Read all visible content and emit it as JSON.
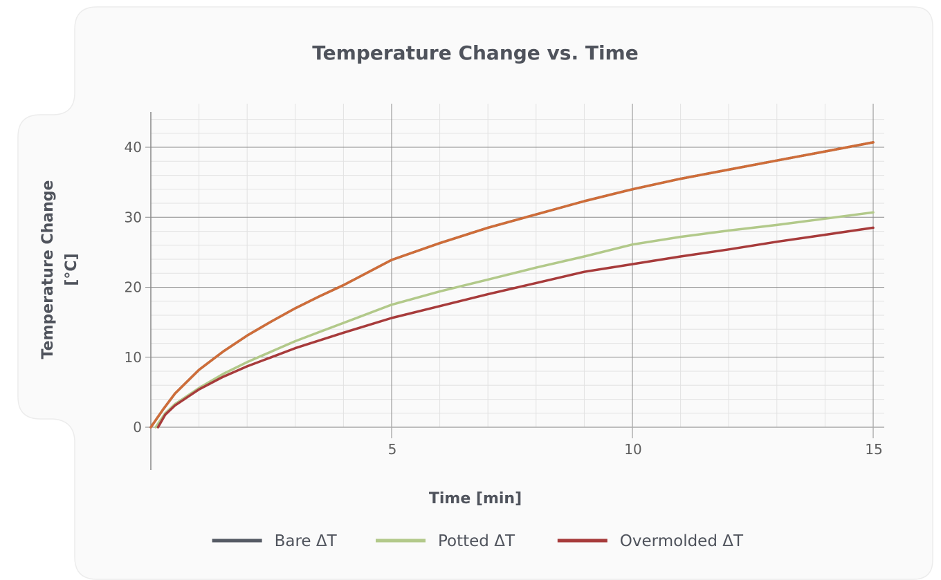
{
  "chart_data": {
    "type": "line",
    "title": "Temperature Change vs. Time",
    "xlabel": "Time [min]",
    "ylabel_lines": [
      "Temperature Change",
      "[°C]"
    ],
    "xlim": [
      0,
      15
    ],
    "ylim": [
      0,
      45
    ],
    "x_major_ticks": [
      5,
      10,
      15
    ],
    "x_minor_step": 1,
    "y_major_ticks": [
      0,
      10,
      20,
      30,
      40
    ],
    "y_minor_step": 2,
    "grid": true,
    "legend_position": "bottom",
    "series": [
      {
        "name": "Bare ΔT",
        "color": "#555a64",
        "points": [
          [
            0,
            0
          ],
          [
            0.25,
            2.5
          ],
          [
            0.5,
            4.8
          ],
          [
            1,
            8.2
          ],
          [
            1.5,
            10.8
          ],
          [
            2,
            13.1
          ],
          [
            2.5,
            15.1
          ],
          [
            3,
            17.0
          ],
          [
            3.5,
            18.7
          ],
          [
            4,
            20.3
          ],
          [
            5,
            23.9
          ],
          [
            6,
            26.3
          ],
          [
            7,
            28.5
          ],
          [
            8,
            30.4
          ],
          [
            9,
            32.3
          ],
          [
            10,
            34.0
          ],
          [
            11,
            35.5
          ],
          [
            12,
            36.8
          ],
          [
            13,
            38.1
          ],
          [
            14,
            39.4
          ],
          [
            15,
            40.7
          ]
        ]
      },
      {
        "name": "Potted ΔT",
        "color": "#b2c98a",
        "points": [
          [
            0.1,
            0
          ],
          [
            0.3,
            2.0
          ],
          [
            0.5,
            3.3
          ],
          [
            1,
            5.6
          ],
          [
            1.5,
            7.6
          ],
          [
            2,
            9.3
          ],
          [
            2.5,
            10.8
          ],
          [
            3,
            12.3
          ],
          [
            3.5,
            13.6
          ],
          [
            4,
            14.9
          ],
          [
            5,
            17.5
          ],
          [
            6,
            19.4
          ],
          [
            7,
            21.1
          ],
          [
            8,
            22.8
          ],
          [
            9,
            24.4
          ],
          [
            10,
            26.1
          ],
          [
            11,
            27.2
          ],
          [
            12,
            28.1
          ],
          [
            13,
            28.9
          ],
          [
            14,
            29.8
          ],
          [
            15,
            30.7
          ]
        ]
      },
      {
        "name": "Overmolded ΔT",
        "color": "#a73b3b",
        "points": [
          [
            0.15,
            0
          ],
          [
            0.3,
            1.8
          ],
          [
            0.5,
            3.1
          ],
          [
            1,
            5.4
          ],
          [
            1.5,
            7.2
          ],
          [
            2,
            8.7
          ],
          [
            2.5,
            10.0
          ],
          [
            3,
            11.3
          ],
          [
            3.5,
            12.4
          ],
          [
            4,
            13.5
          ],
          [
            5,
            15.6
          ],
          [
            6,
            17.3
          ],
          [
            7,
            19.0
          ],
          [
            8,
            20.6
          ],
          [
            9,
            22.2
          ],
          [
            10,
            23.3
          ],
          [
            11,
            24.4
          ],
          [
            12,
            25.4
          ],
          [
            13,
            26.5
          ],
          [
            14,
            27.5
          ],
          [
            15,
            28.5
          ]
        ]
      },
      {
        "name": "",
        "color": "#cf6d39",
        "points": [
          [
            0,
            0
          ],
          [
            0.25,
            2.5
          ],
          [
            0.5,
            4.8
          ],
          [
            1,
            8.2
          ],
          [
            1.5,
            10.8
          ],
          [
            2,
            13.1
          ],
          [
            2.5,
            15.1
          ],
          [
            3,
            17.0
          ],
          [
            3.5,
            18.7
          ],
          [
            4,
            20.3
          ],
          [
            5,
            23.9
          ],
          [
            6,
            26.3
          ],
          [
            7,
            28.5
          ],
          [
            8,
            30.4
          ],
          [
            9,
            32.3
          ],
          [
            10,
            34.0
          ],
          [
            11,
            35.5
          ],
          [
            12,
            36.8
          ],
          [
            13,
            38.1
          ],
          [
            14,
            39.4
          ],
          [
            15,
            40.7
          ]
        ]
      }
    ]
  }
}
